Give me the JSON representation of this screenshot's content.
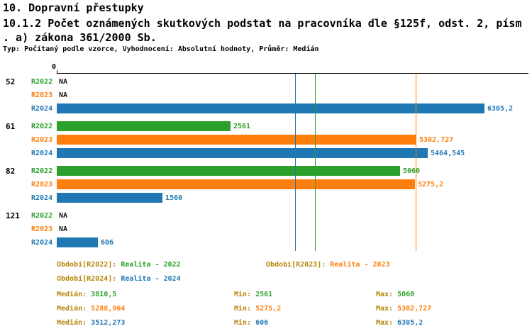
{
  "header": {
    "title": "10. Dopravní přestupky",
    "subtitle_line1": "10.1.2 Počet oznámených skutkových podstat na pracovníka dle §125f, odst. 2, písm",
    "subtitle_line2": ". a) zákona 361/2000 Sb.",
    "meta": "Typ: Počítaný podle vzorce, Vyhodnocení: Absolutní hodnoty, Průměr: Medián"
  },
  "colors": {
    "R2022": "#2CA02C",
    "R2023": "#FF7F0E",
    "R2024": "#1F77B4",
    "label": "#B8860B",
    "na_text": "#111111",
    "axis": "#000000"
  },
  "chart_data": {
    "type": "bar",
    "orientation": "horizontal",
    "x_axis": {
      "origin_label": "0",
      "min": 0,
      "max": 6900,
      "position": "top",
      "grid": false
    },
    "series_names": [
      "R2022",
      "R2023",
      "R2024"
    ],
    "groups": [
      {
        "label": "52",
        "bars": [
          {
            "series": "R2022",
            "value": null,
            "display": "NA"
          },
          {
            "series": "R2023",
            "value": null,
            "display": "NA"
          },
          {
            "series": "R2024",
            "value": 6305.2,
            "display": "6305,2"
          }
        ]
      },
      {
        "label": "61",
        "bars": [
          {
            "series": "R2022",
            "value": 2561,
            "display": "2561"
          },
          {
            "series": "R2023",
            "value": 5302.727,
            "display": "5302,727"
          },
          {
            "series": "R2024",
            "value": 5464.545,
            "display": "5464,545"
          }
        ]
      },
      {
        "label": "82",
        "bars": [
          {
            "series": "R2022",
            "value": 5060,
            "display": "5060"
          },
          {
            "series": "R2023",
            "value": 5275.2,
            "display": "5275,2"
          },
          {
            "series": "R2024",
            "value": 1560,
            "display": "1560"
          }
        ]
      },
      {
        "label": "121",
        "bars": [
          {
            "series": "R2022",
            "value": null,
            "display": "NA"
          },
          {
            "series": "R2023",
            "value": null,
            "display": "NA"
          },
          {
            "series": "R2024",
            "value": 606,
            "display": "606"
          }
        ]
      }
    ],
    "median_lines": [
      {
        "series": "R2022",
        "value": 3810.5
      },
      {
        "series": "R2023",
        "value": 5288.964
      },
      {
        "series": "R2024",
        "value": 3512.273
      }
    ],
    "legend_position": "bottom"
  },
  "legend": {
    "items": [
      {
        "series": "R2022",
        "label": "Období[R2022]:",
        "value": "Realita - 2022"
      },
      {
        "series": "R2023",
        "label": "Období[R2023]:",
        "value": "Realita - 2023"
      },
      {
        "series": "R2024",
        "label": "Období[R2024]:",
        "value": "Realita - 2024"
      }
    ]
  },
  "stats": {
    "rows": [
      {
        "series": "R2022",
        "median_label": "Medián:",
        "median_value": "3810,5",
        "min_label": "Min:",
        "min_value": "2561",
        "max_label": "Max:",
        "max_value": "5060"
      },
      {
        "series": "R2023",
        "median_label": "Medián:",
        "median_value": "5288,964",
        "min_label": "Min:",
        "min_value": "5275,2",
        "max_label": "Max:",
        "max_value": "5302,727"
      },
      {
        "series": "R2024",
        "median_label": "Medián:",
        "median_value": "3512,273",
        "min_label": "Min:",
        "min_value": "606",
        "max_label": "Max:",
        "max_value": "6305,2"
      }
    ]
  }
}
